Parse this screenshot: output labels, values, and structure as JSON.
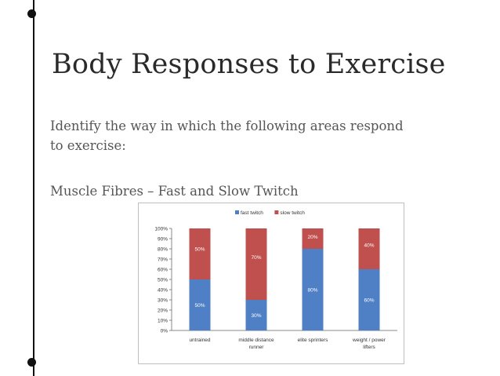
{
  "slide": {
    "title": "Body Responses to Exercise",
    "body_line1": "Identify the way in which the following areas respond",
    "body_line2": "to exercise:",
    "subhead": "Muscle Fibres – Fast and Slow Twitch"
  },
  "colors": {
    "fast_twitch": "#4f7fc4",
    "slow_twitch": "#c0504d",
    "bullet": "#111111"
  },
  "chart_data": {
    "type": "bar",
    "stacked": true,
    "categories": [
      [
        "untrained"
      ],
      [
        "middle distance",
        "runner"
      ],
      [
        "elite sprinters"
      ],
      [
        "weight / power",
        "lifters"
      ]
    ],
    "series": [
      {
        "name": "fast twitch",
        "values": [
          50,
          30,
          80,
          60
        ],
        "labels": [
          "50%",
          "30%",
          "80%",
          "60%"
        ]
      },
      {
        "name": "slow twitch",
        "values": [
          50,
          70,
          20,
          40
        ],
        "labels": [
          "50%",
          "70%",
          "20%",
          "40%"
        ]
      }
    ],
    "y_ticks": [
      "0%",
      "10%",
      "20%",
      "30%",
      "40%",
      "50%",
      "60%",
      "70%",
      "80%",
      "90%",
      "100%"
    ],
    "ylim": [
      0,
      100
    ],
    "legend_position": "top",
    "grid": false
  }
}
